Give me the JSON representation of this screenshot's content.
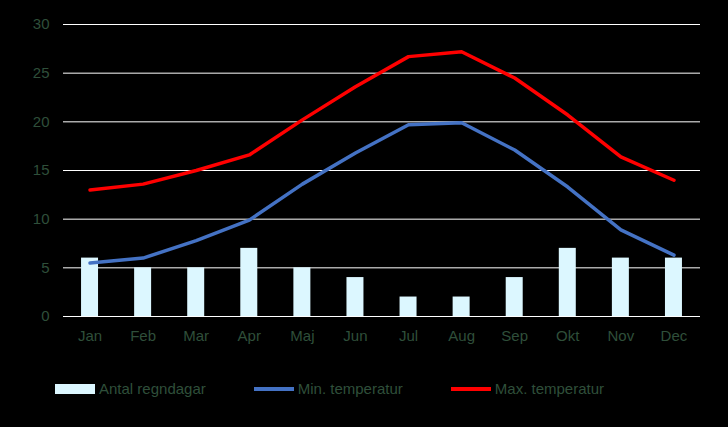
{
  "chart_data": {
    "type": "bar",
    "categories": [
      "Jan",
      "Feb",
      "Mar",
      "Apr",
      "Maj",
      "Jun",
      "Jul",
      "Aug",
      "Sep",
      "Okt",
      "Nov",
      "Dec"
    ],
    "series": [
      {
        "name": "Antal regndagar",
        "type": "bar",
        "color": "#dcf7ff",
        "values": [
          6,
          5,
          5,
          7,
          5,
          4,
          2,
          2,
          4,
          7,
          6,
          6
        ]
      },
      {
        "name": "Min. temperatur",
        "type": "line",
        "color": "#4472c4",
        "values": [
          5.5,
          6,
          7.8,
          9.9,
          13.6,
          16.8,
          19.7,
          19.9,
          17.1,
          13.3,
          8.9,
          6.3
        ]
      },
      {
        "name": "Max. temperatur",
        "type": "line",
        "color": "#ff0000",
        "values": [
          13,
          13.6,
          15,
          16.6,
          20.2,
          23.6,
          26.7,
          27.2,
          24.5,
          20.7,
          16.4,
          14
        ]
      }
    ],
    "ylim": [
      0,
      30
    ],
    "yticks": [
      0,
      5,
      10,
      15,
      20,
      25,
      30
    ],
    "grid": true,
    "legend": "bottom"
  }
}
